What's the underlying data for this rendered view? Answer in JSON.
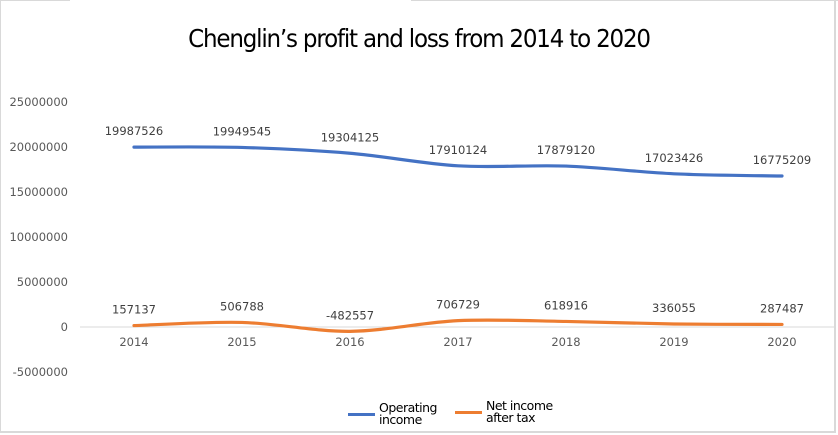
{
  "chart_data": {
    "type": "line",
    "title": "Chenglin’s profit and loss from 2014 to 2020",
    "xlabel": "",
    "ylabel": "",
    "categories": [
      "2014",
      "2015",
      "2016",
      "2017",
      "2018",
      "2019",
      "2020"
    ],
    "series": [
      {
        "name": "Operating income",
        "color": "#4472C4",
        "values": [
          19987526,
          19949545,
          19304125,
          17910124,
          17879120,
          17023426,
          16775209
        ]
      },
      {
        "name": "Net income after tax",
        "color": "#ED7D31",
        "values": [
          157137,
          506788,
          -482557,
          706729,
          618916,
          336055,
          287487
        ]
      }
    ],
    "ylim": [
      -5000000,
      25000000
    ],
    "yticks": [
      25000000,
      20000000,
      15000000,
      10000000,
      5000000,
      0,
      -5000000
    ],
    "ytick_labels": [
      "25000000",
      "20000000",
      "15000000",
      "10000000",
      "5000000",
      "0",
      "-5000000"
    ],
    "grid": false,
    "data_labels": true,
    "smooth": true,
    "legend": {
      "position": "bottom",
      "items": [
        {
          "label_line1": "Operating",
          "label_line2": "income",
          "color": "#4472C4"
        },
        {
          "label_line1": "Net income",
          "label_line2": "after tax",
          "color": "#ED7D31"
        }
      ]
    }
  }
}
